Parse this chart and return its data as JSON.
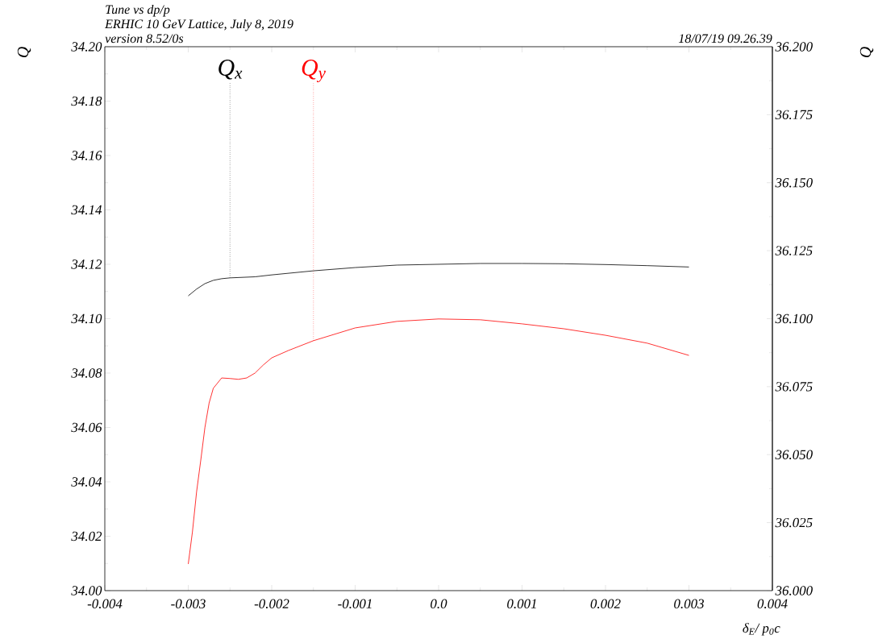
{
  "chart_data": {
    "type": "line",
    "title": "Tune vs dp/p",
    "subtitle": "ERHIC 10 GeV Lattice, July 8, 2019",
    "xlabel": "δ$_{E}$/ p$_{0}$c",
    "ylabel": "Q",
    "y2label": "Q",
    "annotations": [
      {
        "text": "Q$_{x}$",
        "x": -0.0025,
        "y": 34.115
      },
      {
        "text": "Q$_{y}$",
        "x": -0.0015
      },
      "version 8.52/0s",
      "18/07/19  09.26.39"
    ],
    "xlim": [
      -0.004,
      0.004
    ],
    "xticks": [
      -0.004,
      -0.003,
      -0.002,
      -0.001,
      {
        "value": 0,
        "label": "0.0"
      },
      0.001,
      0.002,
      0.003,
      0.004
    ],
    "ylim": [
      34.0,
      34.2
    ],
    "yticks": [
      {
        "value": 34.0,
        "label": "34.00"
      },
      34.02,
      34.04,
      34.06,
      34.08,
      {
        "value": 34.1,
        "label": "34.10"
      },
      34.12,
      34.14,
      34.16,
      34.18,
      {
        "value": 34.2,
        "label": "34.20"
      }
    ],
    "y2lim": [
      36.0,
      36.2
    ],
    "y2ticks": [
      {
        "value": 36.0,
        "label": "36.000"
      },
      36.025,
      {
        "value": 36.05,
        "label": "36.050"
      },
      36.075,
      {
        "value": 36.1,
        "label": "36.100"
      },
      36.125,
      {
        "value": 36.15,
        "label": "36.150"
      },
      36.175,
      {
        "value": 36.2,
        "label": "36.200"
      }
    ],
    "series": [
      {
        "color": "#000000",
        "x": [
          -0.003,
          -0.0029,
          -0.0028,
          -0.0027,
          -0.0026,
          -0.0025,
          -0.0022,
          -0.002,
          -0.0015,
          -0.001,
          -0.0005,
          0,
          0.0005,
          0.001,
          0.0015,
          0.002,
          0.0025,
          0.003
        ],
        "values": [
          34.1084,
          34.1109,
          34.1129,
          34.1141,
          34.1147,
          34.115,
          34.1154,
          34.1161,
          34.1176,
          34.1188,
          34.1197,
          34.12,
          34.1203,
          34.1203,
          34.1202,
          34.1199,
          34.1195,
          34.119
        ]
      },
      {
        "color": "#ff0000",
        "axis": "y2",
        "x": [
          -0.003,
          -0.00295,
          -0.0029,
          -0.00285,
          -0.0028,
          -0.00275,
          -0.0027,
          -0.0026,
          -0.0025,
          -0.0024,
          -0.0023,
          -0.0022,
          -0.0021,
          -0.002,
          -0.0018,
          -0.0015,
          -0.001,
          -0.0005,
          0,
          0.0005,
          0.001,
          0.0015,
          0.002,
          0.0025,
          0.003
        ],
        "values": [
          36.0098,
          36.0216,
          36.0364,
          36.048,
          36.0601,
          36.069,
          36.0744,
          36.0782,
          36.078,
          36.0777,
          36.0782,
          36.08,
          36.083,
          36.0856,
          36.0883,
          36.0919,
          36.0966,
          36.099,
          36.0999,
          36.0996,
          36.0981,
          36.0963,
          36.0939,
          36.091,
          36.0865
        ]
      }
    ]
  }
}
